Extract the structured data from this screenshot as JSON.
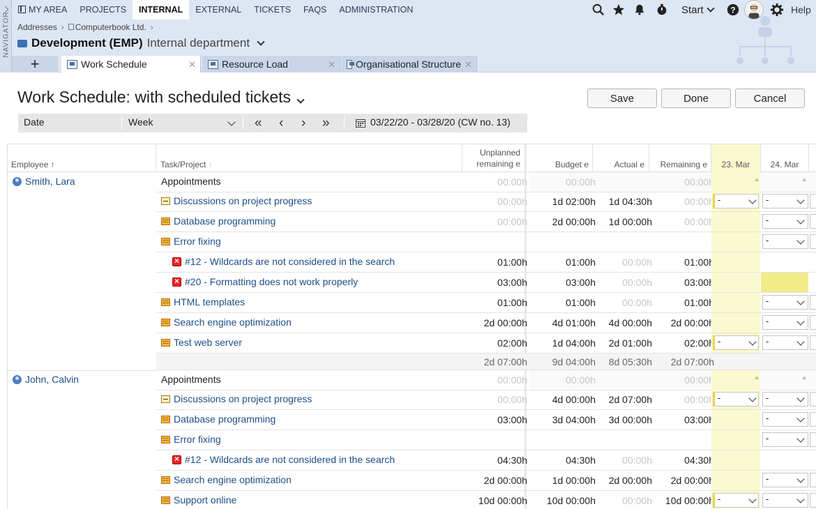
{
  "nav": {
    "side_label": "NAVIGATOR",
    "items": [
      "MY AREA",
      "PROJECTS",
      "INTERNAL",
      "EXTERNAL",
      "TICKETS",
      "FAQS",
      "ADMINISTRATION"
    ],
    "start": "Start",
    "help": "Help"
  },
  "breadcrumb": [
    "Addresses",
    "Computerbook Ltd."
  ],
  "page": {
    "title": "Development (EMP)",
    "subtitle": "Internal department"
  },
  "tabs": [
    "Work Schedule",
    "Resource Load",
    "Organisational Structure"
  ],
  "view": {
    "title": "Work Schedule: with scheduled tickets",
    "save": "Save",
    "done": "Done",
    "cancel": "Cancel"
  },
  "toolbar": {
    "field": "Date",
    "period": "Week",
    "range": "03/22/20 - 03/28/20 (CW no. 13)"
  },
  "columns": {
    "employee": "Employee",
    "task": "Task/Project",
    "unplanned1": "Unplanned",
    "unplanned2": "remaining e",
    "budget": "Budget e",
    "actual": "Actual e",
    "remaining": "Remaining e",
    "d1": "23. Mar",
    "d2": "24. Mar"
  },
  "employees": [
    {
      "name": "Smith, Lara",
      "rows": [
        {
          "task": "Appointments",
          "unp": "00:00h",
          "bud": "00:00h",
          "act": "",
          "rem": "00:00h"
        },
        {
          "task": "Discussions on project progress",
          "unp": "00:00h",
          "bud": "1d 02:00h",
          "act": "1d 04:30h",
          "rem": "00:00h",
          "dd": "-"
        },
        {
          "task": "Database programming",
          "unp": "00:00h",
          "bud": "2d 00:00h",
          "act": "1d 00:00h",
          "rem": "00:00h",
          "dd": "-"
        },
        {
          "task": "Error fixing",
          "unp": "",
          "bud": "",
          "act": "",
          "rem": "",
          "dd": "-"
        },
        {
          "task": "#12 - Wildcards are not considered in the search",
          "unp": "01:00h",
          "bud": "01:00h",
          "act": "00:00h",
          "rem": "01:00h"
        },
        {
          "task": "#20 - Formatting does not work properly",
          "unp": "03:00h",
          "bud": "03:00h",
          "act": "00:00h",
          "rem": "03:00h"
        },
        {
          "task": "HTML templates",
          "unp": "01:00h",
          "bud": "01:00h",
          "act": "00:00h",
          "rem": "01:00h",
          "dd": "-"
        },
        {
          "task": "Search engine optimization",
          "unp": "2d 00:00h",
          "bud": "4d 01:00h",
          "act": "4d 00:00h",
          "rem": "2d 00:00h",
          "dd": "-"
        },
        {
          "task": "Test web server",
          "unp": "02:00h",
          "bud": "1d 04:00h",
          "act": "2d 01:00h",
          "rem": "02:00h",
          "dd": "-"
        }
      ],
      "sum": {
        "unp": "2d 07:00h",
        "bud": "9d 04:00h",
        "act": "8d 05:30h",
        "rem": "2d 07:00h"
      }
    },
    {
      "name": "John, Calvin",
      "rows": [
        {
          "task": "Appointments",
          "unp": "00:00h",
          "bud": "00:00h",
          "act": "",
          "rem": "00:00h"
        },
        {
          "task": "Discussions on project progress",
          "unp": "00:00h",
          "bud": "4d 00:00h",
          "act": "2d 07:00h",
          "rem": "00:00h",
          "dd": "-"
        },
        {
          "task": "Database programming",
          "unp": "03:00h",
          "bud": "3d 04:00h",
          "act": "3d 00:00h",
          "rem": "03:00h",
          "dd": "-"
        },
        {
          "task": "Error fixing",
          "unp": "",
          "bud": "",
          "act": "",
          "rem": "",
          "dd": "-"
        },
        {
          "task": "#12 - Wildcards are not considered in the search",
          "unp": "04:30h",
          "bud": "04:30h",
          "act": "00:00h",
          "rem": "04:30h"
        },
        {
          "task": "Search engine optimization",
          "unp": "2d 00:00h",
          "bud": "1d 00:00h",
          "act": "2d 00:00h",
          "rem": "2d 00:00h",
          "dd": "-"
        },
        {
          "task": "Support online",
          "unp": "10d 00:00h",
          "bud": "10d 00:00h",
          "act": "00:00h",
          "rem": "10d 00:00h",
          "dd": "-"
        }
      ]
    }
  ]
}
